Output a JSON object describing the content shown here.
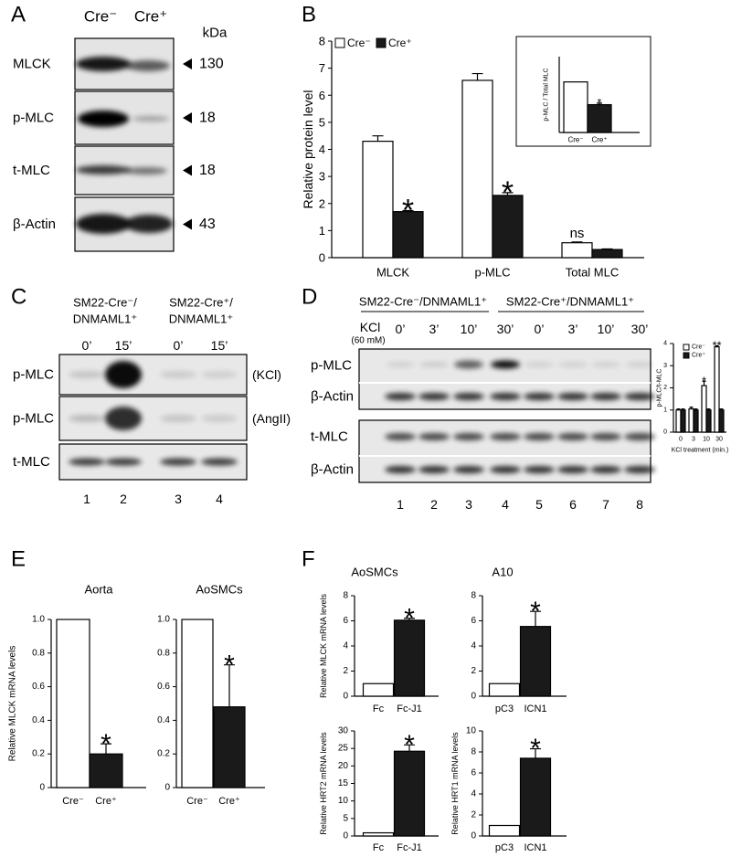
{
  "panel_labels": [
    "A",
    "B",
    "C",
    "D",
    "E",
    "F"
  ],
  "blots": {
    "a": {
      "lanes": [
        "Cre⁻",
        "Cre⁺"
      ],
      "unit": "kDa",
      "rows": [
        {
          "label": "MLCK",
          "size": 130
        },
        {
          "label": "p-MLC",
          "size": 18
        },
        {
          "label": "t-MLC",
          "size": 18
        },
        {
          "label": "β-Actin",
          "size": 43
        }
      ]
    },
    "c": {
      "groups": [
        [
          "SM22-Cre⁻/",
          "DNMAML1⁺"
        ],
        [
          "SM22-Cre⁺/",
          "DNMAML1⁺"
        ]
      ],
      "times": [
        "0’",
        "15’",
        "0’",
        "15’"
      ],
      "rows": [
        {
          "label": "p-MLC",
          "note": "(KCl)"
        },
        {
          "label": "p-MLC",
          "note": "(AngII)"
        },
        {
          "label": "t-MLC"
        }
      ],
      "lanes": [
        1,
        2,
        3,
        4
      ]
    },
    "d": {
      "groups": [
        "SM22-Cre⁻/DNMAML1⁺",
        "SM22-Cre⁺/DNMAML1⁺"
      ],
      "treatment": [
        "KCl",
        "(60 mM)"
      ],
      "times": [
        "0’",
        "3’",
        "10’",
        "30’",
        "0’",
        "3’",
        "10’",
        "30’"
      ],
      "rows": [
        "p-MLC",
        "β-Actin",
        "t-MLC",
        "β-Actin"
      ],
      "lanes": [
        1,
        2,
        3,
        4,
        5,
        6,
        7,
        8
      ]
    }
  },
  "chart_data": [
    {
      "type": "bar",
      "y_label": "Relative protein level",
      "categories": [
        "MLCK",
        "p-MLC",
        "Total MLC"
      ],
      "series": [
        {
          "name": "Cre⁻",
          "color": "#ffffff",
          "values": [
            4.3,
            6.55,
            0.55
          ],
          "errors": [
            0.2,
            0.25,
            0.03
          ],
          "annotations": [
            null,
            null,
            "ns"
          ]
        },
        {
          "name": "Cre⁺",
          "color": "#1a1a1a",
          "values": [
            1.7,
            2.3,
            0.3
          ],
          "errors": [
            0.04,
            0.1,
            0.02
          ],
          "annotations": [
            "*",
            "*",
            null
          ]
        }
      ],
      "ylim": [
        0,
        8
      ],
      "yticks": [
        0,
        1,
        2,
        3,
        4,
        5,
        6,
        7,
        8
      ],
      "legend": "upper left"
    },
    {
      "type": "bar",
      "y_label": "p-MLC / Total MLC",
      "categories": [
        "Cre⁻",
        "Cre⁺"
      ],
      "values": [
        1,
        0.55
      ],
      "errors": [
        null,
        0.03
      ],
      "annotations": [
        null,
        "*"
      ],
      "colors": [
        "#ffffff",
        "#1a1a1a"
      ],
      "ylim": [
        0,
        1.5
      ]
    },
    {
      "type": "bar",
      "y_label": "p-MLC/t-MLC",
      "x_label": "KCl treatment (min.)",
      "categories": [
        "0",
        "3",
        "10",
        "30"
      ],
      "series": [
        {
          "name": "Cre⁻",
          "color": "#ffffff",
          "values": [
            1,
            1.05,
            2.1,
            3.85
          ],
          "errors": [
            0.05,
            0.08,
            0.2,
            0.05
          ],
          "annotations": [
            null,
            null,
            "*",
            "**"
          ]
        },
        {
          "name": "Cre⁺",
          "color": "#1a1a1a",
          "values": [
            1,
            1,
            1,
            1
          ],
          "errors": [
            0.05,
            0.05,
            0.05,
            0.05
          ],
          "annotations": [
            null,
            null,
            null,
            null
          ]
        }
      ],
      "ylim": [
        0,
        4
      ],
      "yticks": [
        0,
        1,
        2,
        3,
        4
      ],
      "legend": "upper left"
    },
    {
      "type": "bar",
      "title": "Aorta",
      "y_label": "Relative MLCK mRNA levels",
      "categories": [
        "Cre⁻",
        "Cre⁺"
      ],
      "values": [
        1,
        0.2
      ],
      "errors": [
        null,
        0.06
      ],
      "annotations": [
        null,
        "*"
      ],
      "colors": [
        "#ffffff",
        "#1a1a1a"
      ],
      "ylim": [
        0,
        1
      ],
      "yticks": [
        0,
        0.2,
        0.4,
        0.6,
        0.8,
        {
          "value": 1,
          "label": "1.0"
        }
      ]
    },
    {
      "type": "bar",
      "title": "AoSMCs",
      "categories": [
        "Cre⁻",
        "Cre⁺"
      ],
      "values": [
        1,
        0.48
      ],
      "errors": [
        null,
        0.25
      ],
      "annotations": [
        null,
        "*"
      ],
      "colors": [
        "#ffffff",
        "#1a1a1a"
      ],
      "ylim": [
        0,
        1
      ],
      "yticks": [
        0,
        0.2,
        0.4,
        0.6,
        0.8,
        {
          "value": 1,
          "label": "1.0"
        }
      ]
    },
    {
      "type": "bar",
      "title": "AoSMCs",
      "y_label": "Relative MLCK mRNA levels",
      "categories": [
        "Fc",
        "Fc-J1"
      ],
      "values": [
        1,
        6.05
      ],
      "errors": [
        null,
        0.15
      ],
      "annotations": [
        null,
        "*"
      ],
      "colors": [
        "#ffffff",
        "#1a1a1a"
      ],
      "ylim": [
        0,
        8
      ],
      "yticks": [
        0,
        2,
        4,
        6,
        8
      ]
    },
    {
      "type": "bar",
      "title": "A10",
      "categories": [
        "pC3",
        "ICN1"
      ],
      "values": [
        1,
        5.55
      ],
      "errors": [
        null,
        1.2
      ],
      "annotations": [
        null,
        "*"
      ],
      "colors": [
        "#ffffff",
        "#1a1a1a"
      ],
      "ylim": [
        0,
        8
      ],
      "yticks": [
        0,
        2,
        4,
        6,
        8
      ]
    },
    {
      "type": "bar",
      "y_label": "Relative HRT2 mRNA levels",
      "categories": [
        "Fc",
        "Fc-J1"
      ],
      "values": [
        0.9,
        24.2
      ],
      "errors": [
        null,
        1.8
      ],
      "annotations": [
        null,
        "*"
      ],
      "colors": [
        "#ffffff",
        "#1a1a1a"
      ],
      "ylim": [
        0,
        30
      ],
      "yticks": [
        0,
        5,
        10,
        15,
        20,
        25,
        30
      ]
    },
    {
      "type": "bar",
      "y_label": "Relative HRT1 mRNA levels",
      "categories": [
        "pC3",
        "ICN1"
      ],
      "values": [
        1,
        7.4
      ],
      "errors": [
        null,
        0.9
      ],
      "annotations": [
        null,
        "*"
      ],
      "colors": [
        "#ffffff",
        "#1a1a1a"
      ],
      "ylim": [
        0,
        10
      ],
      "yticks": [
        0,
        2,
        4,
        6,
        8,
        10
      ]
    }
  ]
}
